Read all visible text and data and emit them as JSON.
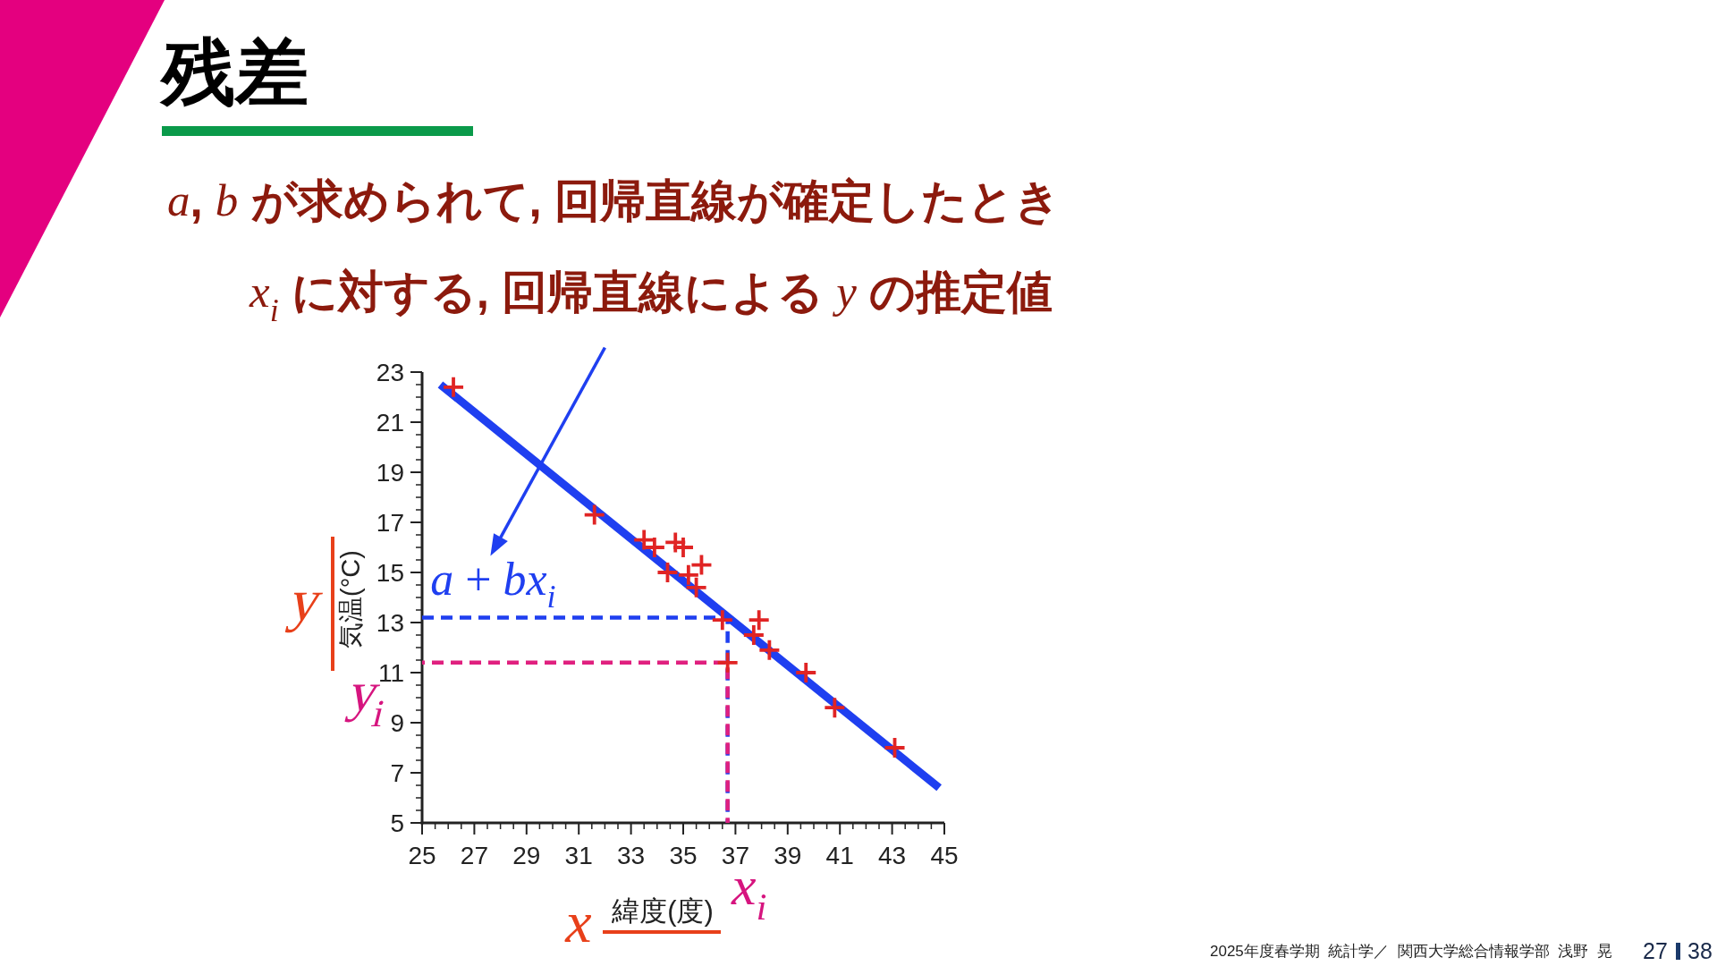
{
  "chart_data": {
    "type": "scatter",
    "title": "残差",
    "subtitle": "a, b が求められて, 回帰直線が確定したとき\nx$_{i}$ に対する, 回帰直線による y の推定値",
    "xlabel": "緯度(度)",
    "ylabel": "気温(°C)",
    "xlim": [
      25,
      45
    ],
    "ylim": [
      5,
      23
    ],
    "xticks": [
      25,
      27,
      29,
      31,
      33,
      35,
      37,
      39,
      41,
      43,
      45
    ],
    "yticks": [
      5,
      7,
      9,
      11,
      13,
      15,
      17,
      19,
      21,
      23
    ],
    "series": [
      {
        "type": "line",
        "color": "#1f3ff0",
        "line_style": "dashed",
        "x": [
          25,
          36.7,
          36.7
        ],
        "values": [
          13.2,
          13.2,
          5
        ]
      },
      {
        "type": "line",
        "color": "#e0207f",
        "line_style": "dashed",
        "x": [
          25,
          36.7,
          36.7
        ],
        "values": [
          11.4,
          11.4,
          5
        ]
      },
      {
        "type": "line",
        "color": "#1f3ff0",
        "x": [
          25.7,
          44.8
        ],
        "values": [
          22.5,
          6.4
        ]
      },
      {
        "color": "#e02424",
        "marker": "cross",
        "x": [
          26.2,
          31.6,
          33.5,
          33.9,
          34.7,
          35.0,
          35.7,
          34.4,
          35.2,
          35.5,
          36.5,
          36.7,
          37.9,
          37.7,
          38.3,
          39.7,
          40.8,
          43.1
        ],
        "values": [
          22.4,
          17.3,
          16.3,
          16.0,
          16.2,
          16.0,
          15.3,
          15.0,
          14.9,
          14.4,
          13.1,
          11.4,
          13.1,
          12.5,
          11.9,
          11.0,
          9.6,
          8.0
        ]
      }
    ],
    "annotations": [
      {
        "text": "a + bx$_{i}$",
        "x": 29.5,
        "y": 19.3
      },
      {
        "text": "y$_{i}$",
        "x": 25,
        "y": 11.4
      },
      {
        "text": "x$_{i}$",
        "x": 36.7,
        "y": 5
      },
      "y",
      "x",
      "2025年度春学期  統計学／  関西大学総合情報学部  浅野  晃",
      "27",
      "38"
    ]
  }
}
